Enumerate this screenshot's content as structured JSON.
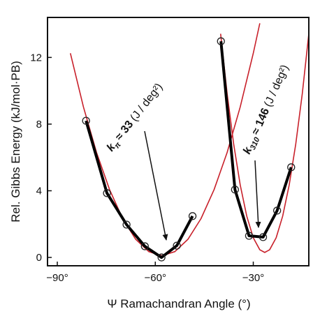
{
  "chart_data": {
    "type": "line",
    "x_label": "Ψ Ramachandran Angle (°)",
    "y_label": "Rel. Gibbs Energy (kJ/mol·PB)",
    "xlim": [
      -93,
      -13
    ],
    "ylim": [
      -0.5,
      14.4
    ],
    "xticks": [
      {
        "value": -90,
        "label": "−90°"
      },
      {
        "value": -60,
        "label": "−60°"
      },
      {
        "value": -30,
        "label": "−30°"
      }
    ],
    "yticks": [
      0,
      4,
      8,
      12
    ],
    "series": [
      {
        "color": "#c8202a",
        "style": "fit",
        "x": [
          -86,
          -82,
          -78,
          -74,
          -70,
          -66,
          -62,
          -58,
          -54,
          -50,
          -46,
          -42,
          -38,
          -34,
          -30,
          -28
        ],
        "values": [
          12.25,
          9.03,
          6.3,
          4.07,
          2.33,
          1.09,
          0.35,
          0.1,
          0.35,
          1.09,
          2.33,
          4.07,
          6.3,
          9.03,
          12.25,
          14.05
        ]
      },
      {
        "color": "#c8202a",
        "style": "fit",
        "x": [
          -40,
          -38,
          -36,
          -34,
          -32,
          -30,
          -28,
          -26.5,
          -25,
          -23,
          -21,
          -19,
          -17,
          -15,
          -13
        ],
        "values": [
          13.42,
          9.82,
          6.8,
          4.35,
          2.48,
          1.18,
          0.46,
          0.3,
          0.46,
          1.18,
          2.48,
          4.35,
          6.8,
          9.82,
          13.42
        ]
      },
      {
        "color": "#000000",
        "style": "data",
        "x": [
          -81.2,
          -74.8,
          -68.8,
          -63.2,
          -58.1,
          -53.4,
          -48.6
        ],
        "values": [
          8.2,
          3.86,
          1.97,
          0.67,
          0.0,
          0.71,
          2.48
        ]
      },
      {
        "color": "#000000",
        "style": "data",
        "x": [
          -39.9,
          -35.6,
          -31.3,
          -27.0,
          -22.7,
          -18.4
        ],
        "values": [
          12.97,
          4.07,
          1.3,
          1.22,
          2.81,
          5.41
        ]
      }
    ],
    "annotations": [
      {
        "symbol": "k",
        "subscript": "π",
        "value": "≈ 33",
        "unit": "(J / deg²)"
      },
      {
        "symbol": "k",
        "subscript": "310",
        "value": "≈ 146",
        "unit": "(J / deg²)"
      }
    ]
  }
}
